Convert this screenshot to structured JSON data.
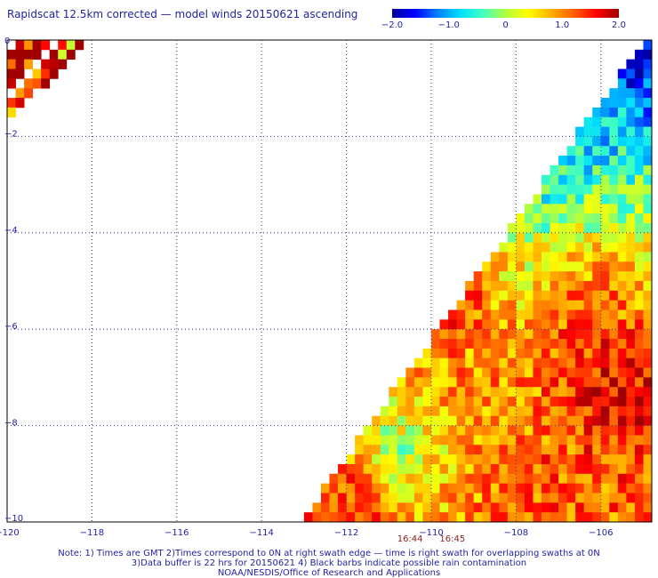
{
  "title": "Rapidscat 12.5km corrected — model winds 20150621 ascending",
  "colorbar": {
    "ticks": [
      "−2.0",
      "−1.0",
      "0",
      "1.0",
      "2.0"
    ],
    "tick_values": [
      -2,
      -1,
      0,
      1,
      2
    ],
    "colors": [
      "#0000a0",
      "#0000ff",
      "#0080ff",
      "#00e0ff",
      "#40ffc0",
      "#b0ff40",
      "#ffff00",
      "#ffb000",
      "#ff6000",
      "#ff0000",
      "#a00000"
    ]
  },
  "chart_data": {
    "type": "heatmap",
    "variable": "corrected minus model wind speed difference",
    "xlim": [
      -120,
      -104.8
    ],
    "ylim": [
      -10,
      0
    ],
    "x_ticks": [
      -120,
      -118,
      -116,
      -114,
      -112,
      -110,
      -108,
      -106
    ],
    "x_tick_labels": [
      "−120",
      "−118",
      "−116",
      "−114",
      "−112",
      "−110",
      "−108",
      "−106"
    ],
    "y_ticks": [
      0,
      -2,
      -4,
      -6,
      -8,
      -10
    ],
    "y_tick_labels": [
      "0",
      "−2",
      "−4",
      "−6",
      "−8",
      "−10"
    ],
    "grid": true,
    "cell_deg": 0.2,
    "swath_edge": [
      [
        -104.8,
        0.2
      ],
      [
        -113.1,
        -10.0
      ]
    ],
    "regions": [
      {
        "lon": [
          -105.5,
          -104.8
        ],
        "lat": [
          0,
          -0.6
        ],
        "mean": -2.0
      },
      {
        "lon": [
          -107.0,
          -105.5
        ],
        "lat": [
          -0.5,
          -3.5
        ],
        "mean": -1.0
      },
      {
        "lon": [
          -109.0,
          -106.0
        ],
        "lat": [
          -2.5,
          -4.0
        ],
        "mean": -0.7
      },
      {
        "lon": [
          -108.5,
          -106.5
        ],
        "lat": [
          -4.0,
          -5.5
        ],
        "mean": 0.2
      },
      {
        "lon": [
          -110.5,
          -108.5
        ],
        "lat": [
          -4.0,
          -6.5
        ],
        "mean": 1.7
      },
      {
        "lon": [
          -107.5,
          -105.5
        ],
        "lat": [
          -5.0,
          -6.0
        ],
        "mean": 1.6
      },
      {
        "lon": [
          -106.5,
          -104.8
        ],
        "lat": [
          -6.0,
          -8.5
        ],
        "mean": 1.9
      },
      {
        "lon": [
          -111.0,
          -108.0
        ],
        "lat": [
          -6.5,
          -8.5
        ],
        "mean": 1.0
      },
      {
        "lon": [
          -112.0,
          -109.5
        ],
        "lat": [
          -8.0,
          -9.0
        ],
        "mean": -0.4
      },
      {
        "lon": [
          -113.0,
          -110.5
        ],
        "lat": [
          -9.0,
          -10.0
        ],
        "mean": 1.7
      },
      {
        "lon": [
          -109.0,
          -106.5
        ],
        "lat": [
          -9.0,
          -10.0
        ],
        "mean": 1.3
      }
    ],
    "corner_patch": {
      "lon": [
        -120,
        -118.2
      ],
      "lat": [
        0,
        -1.5
      ],
      "mean": 1.3
    },
    "time_labels": [
      {
        "text": "16:44",
        "lon": -110.5
      },
      {
        "text": "16:45",
        "lon": -109.5
      }
    ]
  },
  "notes": [
    "Note: 1) Times are GMT 2)Times correspond to 0N at right swath edge — time is right swath for overlapping swaths at 0N",
    "3)Data buffer is 22 hrs for 20150621 4) Black barbs indicate possible rain contamination",
    "NOAA/NESDIS/Office of Research and Applications"
  ]
}
